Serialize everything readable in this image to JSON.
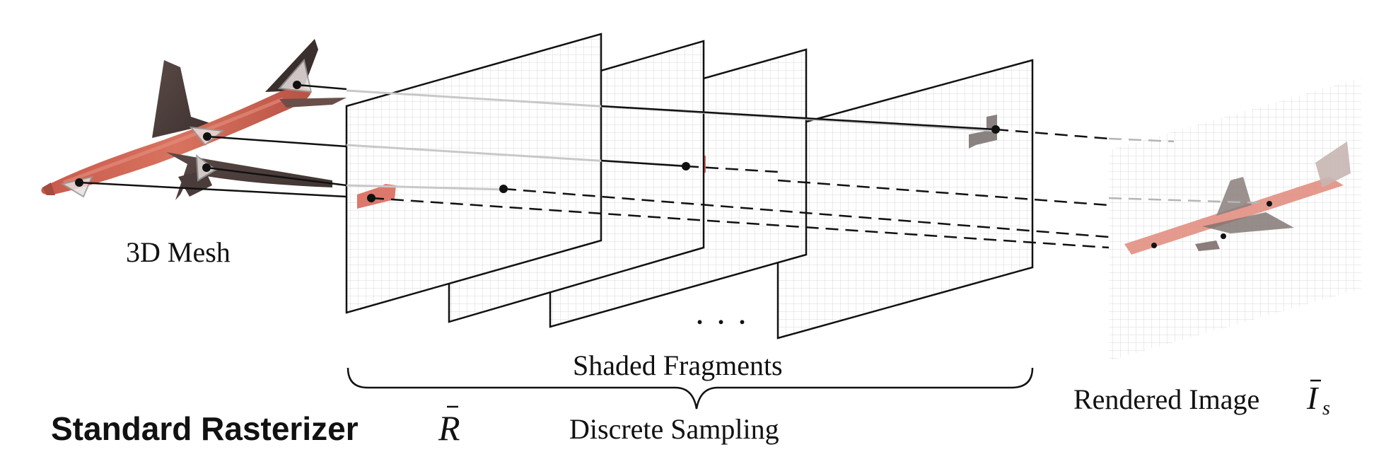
{
  "labels": {
    "mesh": "3D Mesh",
    "shaded_fragments": "Shaded Fragments",
    "discrete_sampling": "Discrete Sampling",
    "rendered_image": "Rendered Image",
    "rendered_image_symbol": "I",
    "rendered_image_subscript": "s",
    "rasterizer_title": "Standard Rasterizer",
    "rasterizer_symbol": "R",
    "ellipsis": ". . ."
  },
  "colors": {
    "mesh_red": "#d9695c",
    "mesh_dark": "#4a3a38",
    "fragment_gray": "#8a8280",
    "grid": "#d6d6d6",
    "frame": "#111111"
  }
}
